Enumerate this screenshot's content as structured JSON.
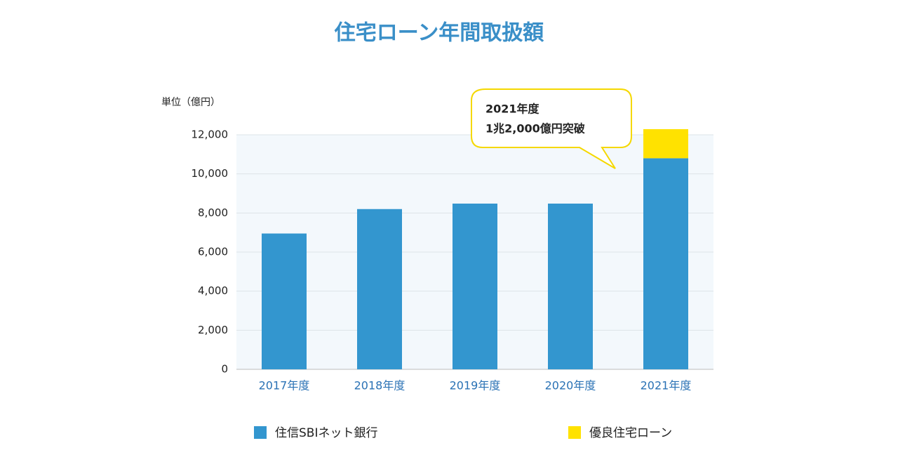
{
  "chart_data": {
    "type": "stacked_bar",
    "title": "住宅ローン年間取扱額",
    "y_label": "単位（億円）",
    "annotation": [
      "2021年度",
      "1兆2,000億円突破"
    ],
    "categories": [
      "2017年度",
      "2018年度",
      "2019年度",
      "2020年度",
      "2021年度"
    ],
    "series": [
      {
        "name": "住信SBIネット銀行",
        "color": "#3396cf",
        "values": [
          6950,
          8200,
          8480,
          8480,
          10800
        ]
      },
      {
        "name": "優良住宅ローン",
        "color": "#ffe200",
        "values": [
          0,
          0,
          0,
          0,
          1490
        ]
      }
    ],
    "ylim": [
      0,
      12000
    ],
    "yticks": [
      0,
      {
        "value": 2000,
        "label": "2,000"
      },
      {
        "value": 4000,
        "label": "4,000"
      },
      {
        "value": 6000,
        "label": "6,000"
      },
      {
        "value": 8000,
        "label": "8,000"
      },
      {
        "value": 10000,
        "label": "10,000"
      },
      {
        "value": 12000,
        "label": "12,000"
      }
    ],
    "grid": true
  }
}
